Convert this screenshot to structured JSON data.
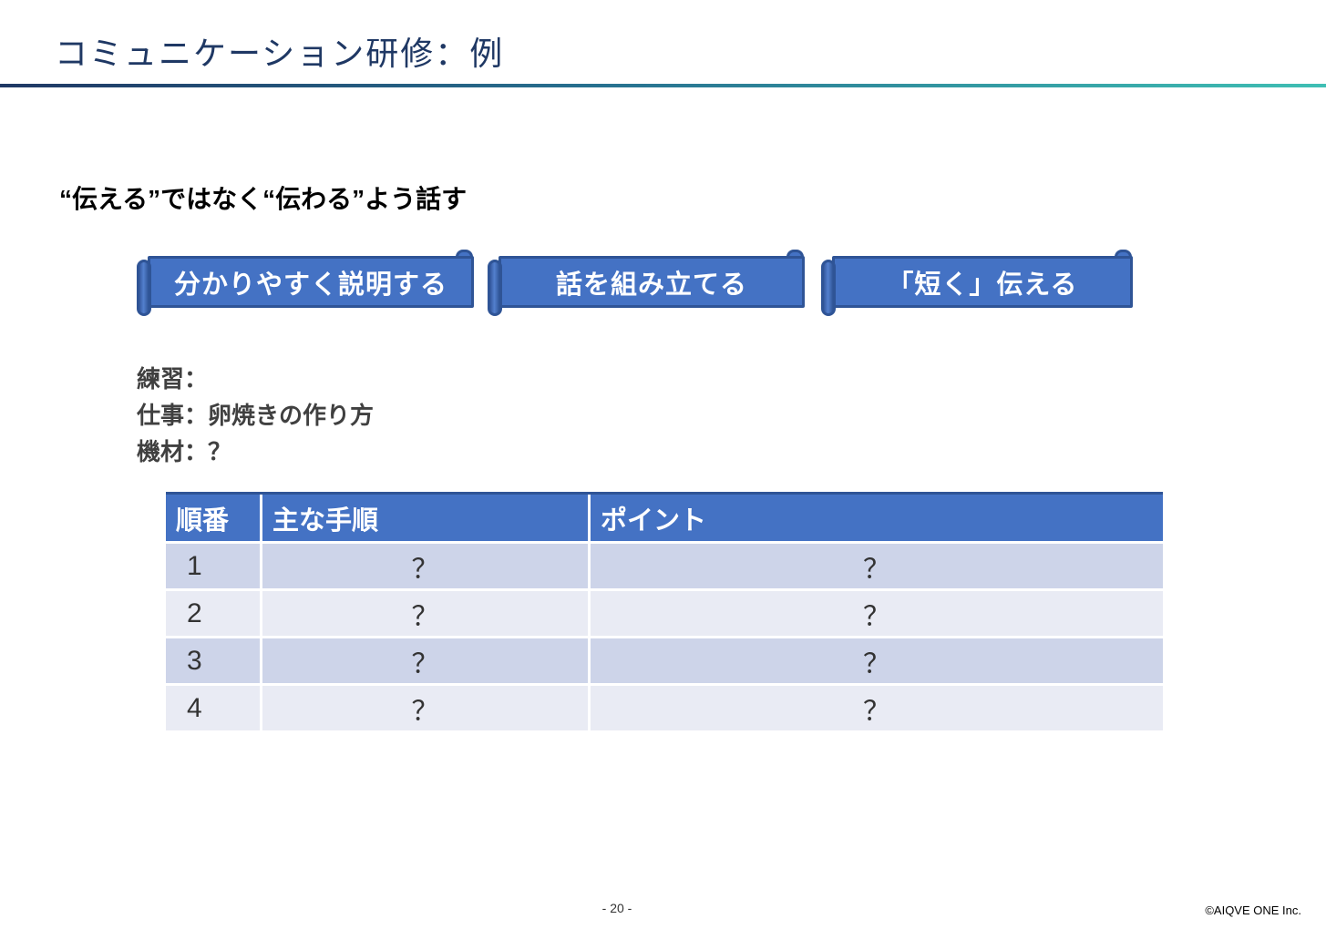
{
  "slide": {
    "title": "コミュニケーション研修：例",
    "subtitle": "“伝える”ではなく“伝わる”よう話す",
    "banners": [
      {
        "label": "分かりやすく説明する"
      },
      {
        "label": "話を組み立てる"
      },
      {
        "label": "「短く」伝える"
      }
    ],
    "practice": {
      "line1": "練習：",
      "line2": "仕事：卵焼きの作り方",
      "line3": "機材：？"
    },
    "table": {
      "headers": [
        "順番",
        "主な手順",
        "ポイント"
      ],
      "rows": [
        [
          "1",
          "？",
          "？"
        ],
        [
          "2",
          "？",
          "？"
        ],
        [
          "3",
          "？",
          "？"
        ],
        [
          "4",
          "？",
          "？"
        ]
      ]
    },
    "footer": {
      "page_number": "- 20 -",
      "copyright": "©AIQVE ONE Inc."
    },
    "colors": {
      "title_navy": "#1F3864",
      "accent_blue": "#4472C4",
      "accent_border": "#2F5496",
      "rule_gradient_start": "#1F3864",
      "rule_gradient_end": "#3FBFB4",
      "band_dark": "#CDD4E9",
      "band_light": "#E9EBF4"
    }
  }
}
